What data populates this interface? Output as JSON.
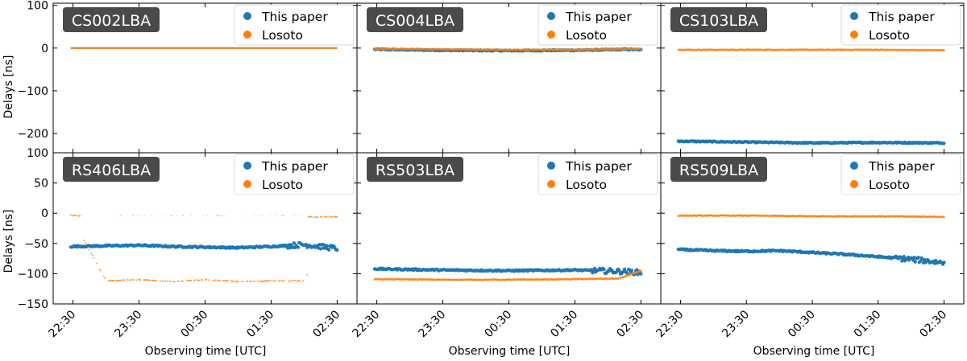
{
  "xlabel": "Observing time [UTC]",
  "ylabel": "Delays [ns]",
  "colors": {
    "paper": "#1f77b4",
    "losoto": "#ff7f0e",
    "label_bg": "#4a4a4a"
  },
  "legend": [
    "This paper",
    "Losoto"
  ],
  "x_tick_labels": [
    "22:30",
    "23:30",
    "00:30",
    "01:30",
    "02:30"
  ],
  "chart_data": [
    {
      "type": "scatter",
      "station": "CS002LBA",
      "xlim": [
        "22:12",
        "02:48"
      ],
      "ylim": [
        -245,
        105
      ],
      "yticks": [
        -200,
        -100,
        0,
        100
      ],
      "series": [
        {
          "name": "This paper",
          "x": [
            "22:28",
            "23:30",
            "00:30",
            "01:30",
            "02:30"
          ],
          "y": [
            0,
            0,
            0,
            0,
            0
          ]
        },
        {
          "name": "Losoto",
          "x": [
            "22:28",
            "23:30",
            "00:30",
            "01:30",
            "02:30"
          ],
          "y": [
            0,
            0,
            0,
            0,
            0
          ]
        }
      ]
    },
    {
      "type": "scatter",
      "station": "CS004LBA",
      "xlim": [
        "22:12",
        "02:48"
      ],
      "ylim": [
        -245,
        105
      ],
      "yticks": [],
      "series": [
        {
          "name": "This paper",
          "x": [
            "22:28",
            "23:30",
            "00:30",
            "01:30",
            "02:20",
            "02:30"
          ],
          "y": [
            -3,
            -5,
            -6,
            -5,
            -3,
            -4
          ]
        },
        {
          "name": "Losoto",
          "x": [
            "22:28",
            "23:30",
            "00:30",
            "01:30",
            "02:20",
            "02:30"
          ],
          "y": [
            -2,
            -3,
            -4,
            -4,
            -2,
            -2
          ]
        }
      ]
    },
    {
      "type": "scatter",
      "station": "CS103LBA",
      "xlim": [
        "22:12",
        "02:48"
      ],
      "ylim": [
        -245,
        105
      ],
      "yticks": [],
      "series": [
        {
          "name": "This paper",
          "x": [
            "22:28",
            "23:30",
            "00:30",
            "01:30",
            "02:30"
          ],
          "y": [
            -218,
            -220,
            -222,
            -221,
            -222
          ]
        },
        {
          "name": "Losoto",
          "x": [
            "22:28",
            "23:30",
            "00:30",
            "01:30",
            "02:30"
          ],
          "y": [
            -4,
            -4,
            -4,
            -4,
            -5
          ]
        }
      ]
    },
    {
      "type": "scatter",
      "station": "RS406LBA",
      "xlim": [
        "22:12",
        "02:48"
      ],
      "ylim": [
        -150,
        100
      ],
      "yticks": [
        -150,
        -100,
        -50,
        0,
        50,
        100
      ],
      "series": [
        {
          "name": "This paper",
          "x": [
            "22:28",
            "23:00",
            "23:30",
            "00:00",
            "00:30",
            "01:00",
            "01:30",
            "02:00",
            "02:30"
          ],
          "y": [
            -55,
            -54,
            -53,
            -55,
            -56,
            -57,
            -55,
            -52,
            -58
          ]
        },
        {
          "name": "Losoto",
          "x": [
            "22:28",
            "23:00",
            "23:30",
            "00:00",
            "00:30",
            "01:00",
            "01:30",
            "02:00",
            "02:30"
          ],
          "y": [
            -4,
            -112,
            -110,
            -113,
            -110,
            -113,
            -112,
            -112,
            -6
          ]
        }
      ]
    },
    {
      "type": "scatter",
      "station": "RS503LBA",
      "xlim": [
        "22:12",
        "02:48"
      ],
      "ylim": [
        -150,
        100
      ],
      "yticks": [],
      "series": [
        {
          "name": "This paper",
          "x": [
            "22:28",
            "23:30",
            "00:30",
            "01:30",
            "02:10",
            "02:30"
          ],
          "y": [
            -92,
            -94,
            -95,
            -94,
            -96,
            -98
          ]
        },
        {
          "name": "Losoto",
          "x": [
            "22:28",
            "23:30",
            "00:30",
            "01:30",
            "02:10",
            "02:30"
          ],
          "y": [
            -109,
            -110,
            -110,
            -109,
            -108,
            -95
          ]
        }
      ]
    },
    {
      "type": "scatter",
      "station": "RS509LBA",
      "xlim": [
        "22:12",
        "02:48"
      ],
      "ylim": [
        -150,
        100
      ],
      "yticks": [],
      "series": [
        {
          "name": "This paper",
          "x": [
            "22:28",
            "23:00",
            "23:30",
            "00:00",
            "00:30",
            "01:00",
            "01:30",
            "02:00",
            "02:30"
          ],
          "y": [
            -60,
            -62,
            -63,
            -62,
            -65,
            -68,
            -72,
            -76,
            -82
          ]
        },
        {
          "name": "Losoto",
          "x": [
            "22:28",
            "23:30",
            "00:30",
            "01:30",
            "02:30"
          ],
          "y": [
            -4,
            -4,
            -5,
            -5,
            -6
          ]
        }
      ]
    }
  ]
}
